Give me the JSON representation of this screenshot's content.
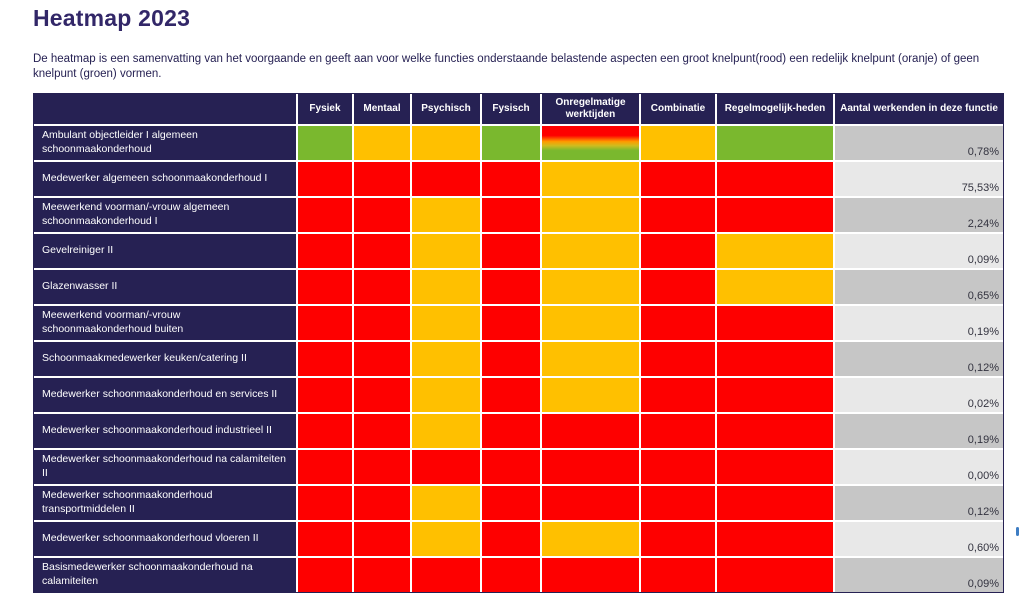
{
  "page": {
    "title": "Heatmap 2023",
    "description": "De heatmap is een samenvatting van het voorgaande en geeft aan voor welke functies onderstaande belastende aspecten een groot knelpunt(rood) een redelijk knelpunt (oranje) of geen knelpunt (groen) vormen."
  },
  "colors": {
    "navy": "#262153",
    "title_color": "#322768",
    "red": "#fe0000",
    "orange": "#ffc000",
    "green": "#7ab82e",
    "value_bg_dark": "#c6c6c6",
    "value_bg_light": "#e8e8e8",
    "blue_mark": "#3e7dc3"
  },
  "chart_data": {
    "type": "heatmap",
    "title": "Heatmap 2023",
    "columns": [
      "Fysiek",
      "Mentaal",
      "Psychisch",
      "Fysisch",
      "Onregelmatige werktijden",
      "Combinatie",
      "Regelmogelijk-heden"
    ],
    "value_column": "Aantal werkenden in deze functie",
    "color_legend": {
      "red": "groot knelpunt (rood)",
      "orange": "redelijk knelpunt (oranje)",
      "green": "geen knelpunt (groen)",
      "gradient": "verloop van rood naar groen"
    },
    "rows": [
      {
        "functie": "Ambulant objectleider I algemeen schoonmaakonderhoud",
        "cells": [
          "green",
          "orange",
          "orange",
          "green",
          "gradient",
          "orange",
          "green"
        ],
        "aantal_werkenden": "0,78%"
      },
      {
        "functie": "Medewerker algemeen schoonmaakonderhoud I",
        "cells": [
          "red",
          "red",
          "red",
          "red",
          "orange",
          "red",
          "red"
        ],
        "aantal_werkenden": "75,53%"
      },
      {
        "functie": "Meewerkend voorman/-vrouw algemeen schoonmaakonderhoud I",
        "cells": [
          "red",
          "red",
          "orange",
          "red",
          "orange",
          "red",
          "red"
        ],
        "aantal_werkenden": "2,24%"
      },
      {
        "functie": "Gevelreiniger II",
        "cells": [
          "red",
          "red",
          "orange",
          "red",
          "orange",
          "red",
          "orange"
        ],
        "aantal_werkenden": "0,09%"
      },
      {
        "functie": "Glazenwasser II",
        "cells": [
          "red",
          "red",
          "orange",
          "red",
          "orange",
          "red",
          "orange"
        ],
        "aantal_werkenden": "0,65%"
      },
      {
        "functie": "Meewerkend voorman/-vrouw schoonmaakonderhoud buiten",
        "cells": [
          "red",
          "red",
          "orange",
          "red",
          "orange",
          "red",
          "red"
        ],
        "aantal_werkenden": "0,19%"
      },
      {
        "functie": "Schoonmaakmedewerker keuken/catering II",
        "cells": [
          "red",
          "red",
          "orange",
          "red",
          "orange",
          "red",
          "red"
        ],
        "aantal_werkenden": "0,12%"
      },
      {
        "functie": "Medewerker schoonmaakonderhoud en services II",
        "cells": [
          "red",
          "red",
          "orange",
          "red",
          "orange",
          "red",
          "red"
        ],
        "aantal_werkenden": "0,02%"
      },
      {
        "functie": "Medewerker schoonmaakonderhoud industrieel II",
        "cells": [
          "red",
          "red",
          "orange",
          "red",
          "red",
          "red",
          "red"
        ],
        "aantal_werkenden": "0,19%"
      },
      {
        "functie": "Medewerker schoonmaakonderhoud na calamiteiten II",
        "cells": [
          "red",
          "red",
          "red",
          "red",
          "red",
          "red",
          "red"
        ],
        "aantal_werkenden": "0,00%"
      },
      {
        "functie": "Medewerker schoonmaakonderhoud transportmiddelen II",
        "cells": [
          "red",
          "red",
          "orange",
          "red",
          "red",
          "red",
          "red"
        ],
        "aantal_werkenden": "0,12%"
      },
      {
        "functie": "Medewerker schoonmaakonderhoud vloeren II",
        "cells": [
          "red",
          "red",
          "orange",
          "red",
          "orange",
          "red",
          "red"
        ],
        "aantal_werkenden": "0,60%"
      },
      {
        "functie": "Basismedewerker schoonmaakonderhoud na calamiteiten",
        "cells": [
          "red",
          "red",
          "red",
          "red",
          "red",
          "red",
          "red"
        ],
        "aantal_werkenden": "0,09%"
      }
    ]
  }
}
